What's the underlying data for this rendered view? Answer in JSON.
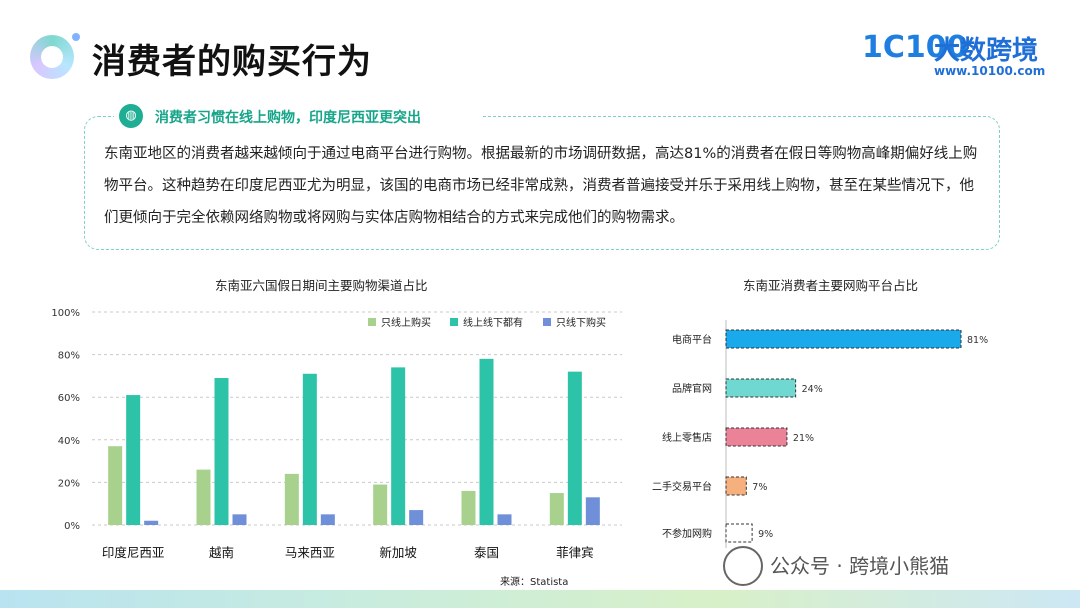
{
  "header": {
    "title": "消费者的购买行为",
    "brand_mark": "1C100",
    "brand_name": "大数跨境",
    "brand_url": "www.10100.com"
  },
  "callout": {
    "heading": "消费者习惯在线上购物，印度尼西亚更突出",
    "paragraph": "东南亚地区的消费者越来越倾向于通过电商平台进行购物。根据最新的市场调研数据，高达81%的消费者在假日等购物高峰期偏好线上购物平台。这种趋势在印度尼西亚尤为明显，该国的电商市场已经非常成熟，消费者普遍接受并乐于采用线上购物，甚至在某些情况下，他们更倾向于完全依赖网络购物或将网购与实体店购物相结合的方式来完成他们的购物需求。"
  },
  "source": "来源：Statista",
  "watermark": "公众号 · 跨境小熊猫",
  "chart_data": [
    {
      "type": "bar",
      "title": "东南亚六国假日期间主要购物渠道占比",
      "categories": [
        "印度尼西亚",
        "越南",
        "马来西亚",
        "新加坡",
        "泰国",
        "菲律宾"
      ],
      "series": [
        {
          "name": "只线上购买",
          "color": "#a9d18e",
          "values": [
            37,
            26,
            24,
            19,
            16,
            15
          ]
        },
        {
          "name": "线上线下都有",
          "color": "#2cc3a8",
          "values": [
            61,
            69,
            71,
            74,
            78,
            72
          ]
        },
        {
          "name": "只线下购买",
          "color": "#6f8fd8",
          "values": [
            2,
            5,
            5,
            7,
            5,
            13
          ]
        }
      ],
      "yticks": [
        "0%",
        "20%",
        "40%",
        "60%",
        "80%",
        "100%"
      ],
      "ylim": [
        0,
        100
      ],
      "grid": "dashed horizontal",
      "legend": "top-right"
    },
    {
      "type": "bar",
      "orientation": "horizontal",
      "title": "东南亚消费者主要网购平台占比",
      "categories": [
        "电商平台",
        "品牌官网",
        "线上零售店",
        "二手交易平台",
        "不参加网购"
      ],
      "values": [
        81,
        24,
        21,
        7,
        9
      ],
      "value_labels": [
        "81%",
        "24%",
        "21%",
        "7%",
        "9%"
      ],
      "colors": [
        "#1aa9ea",
        "#6fd8d0",
        "#ea8298",
        "#f5b07e",
        "#ffffff"
      ]
    }
  ]
}
